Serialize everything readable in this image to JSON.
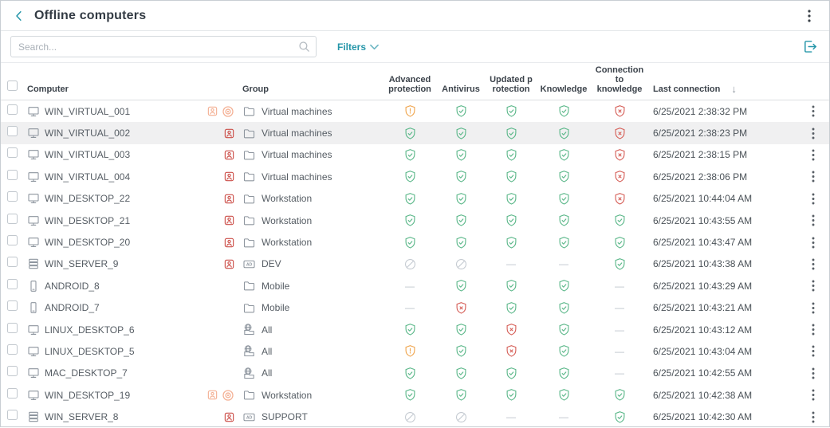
{
  "header": {
    "title": "Offline computers"
  },
  "toolbar": {
    "search_placeholder": "Search...",
    "filters_label": "Filters"
  },
  "table": {
    "columns": {
      "computer": "Computer",
      "group": "Group",
      "advanced": "Advanced protection",
      "antivirus": "Antivirus",
      "updated": "Updated protection",
      "knowledge": "Knowledge",
      "connection": "Connection to knowledge",
      "last": "Last connection"
    },
    "sort_indicator": "↓",
    "rows": [
      {
        "name": "WIN_VIRTUAL_001",
        "device": "desktop",
        "badges": [
          "user-light",
          "isolation"
        ],
        "group": "Virtual machines",
        "group_icon": "folder",
        "statuses": {
          "advanced": "warn",
          "antivirus": "ok",
          "updated": "ok",
          "knowledge": "ok",
          "connection": "err"
        },
        "last": "6/25/2021 2:38:32 PM",
        "selected": false
      },
      {
        "name": "WIN_VIRTUAL_002",
        "device": "desktop",
        "badges": [
          "user-red"
        ],
        "group": "Virtual machines",
        "group_icon": "folder",
        "statuses": {
          "advanced": "ok",
          "antivirus": "ok",
          "updated": "ok",
          "knowledge": "ok",
          "connection": "err"
        },
        "last": "6/25/2021 2:38:23 PM",
        "selected": true
      },
      {
        "name": "WIN_VIRTUAL_003",
        "device": "desktop",
        "badges": [
          "user-red"
        ],
        "group": "Virtual machines",
        "group_icon": "folder",
        "statuses": {
          "advanced": "ok",
          "antivirus": "ok",
          "updated": "ok",
          "knowledge": "ok",
          "connection": "err"
        },
        "last": "6/25/2021 2:38:15 PM",
        "selected": false
      },
      {
        "name": "WIN_VIRTUAL_004",
        "device": "desktop",
        "badges": [
          "user-red"
        ],
        "group": "Virtual machines",
        "group_icon": "folder",
        "statuses": {
          "advanced": "ok",
          "antivirus": "ok",
          "updated": "ok",
          "knowledge": "ok",
          "connection": "err"
        },
        "last": "6/25/2021 2:38:06 PM",
        "selected": false
      },
      {
        "name": "WIN_DESKTOP_22",
        "device": "desktop",
        "badges": [
          "user-red"
        ],
        "group": "Workstation",
        "group_icon": "folder",
        "statuses": {
          "advanced": "ok",
          "antivirus": "ok",
          "updated": "ok",
          "knowledge": "ok",
          "connection": "err"
        },
        "last": "6/25/2021 10:44:04 AM",
        "selected": false
      },
      {
        "name": "WIN_DESKTOP_21",
        "device": "desktop",
        "badges": [
          "user-red"
        ],
        "group": "Workstation",
        "group_icon": "folder",
        "statuses": {
          "advanced": "ok",
          "antivirus": "ok",
          "updated": "ok",
          "knowledge": "ok",
          "connection": "ok"
        },
        "last": "6/25/2021 10:43:55 AM",
        "selected": false
      },
      {
        "name": "WIN_DESKTOP_20",
        "device": "desktop",
        "badges": [
          "user-red"
        ],
        "group": "Workstation",
        "group_icon": "folder",
        "statuses": {
          "advanced": "ok",
          "antivirus": "ok",
          "updated": "ok",
          "knowledge": "ok",
          "connection": "ok"
        },
        "last": "6/25/2021 10:43:47 AM",
        "selected": false
      },
      {
        "name": "WIN_SERVER_9",
        "device": "server",
        "badges": [
          "user-red"
        ],
        "group": "DEV",
        "group_icon": "ad",
        "statuses": {
          "advanced": "off",
          "antivirus": "off",
          "updated": "none",
          "knowledge": "none",
          "connection": "ok"
        },
        "last": "6/25/2021 10:43:38 AM",
        "selected": false
      },
      {
        "name": "ANDROID_8",
        "device": "mobile",
        "badges": [],
        "group": "Mobile",
        "group_icon": "folder",
        "statuses": {
          "advanced": "none",
          "antivirus": "ok",
          "updated": "ok",
          "knowledge": "ok",
          "connection": "none"
        },
        "last": "6/25/2021 10:43:29 AM",
        "selected": false
      },
      {
        "name": "ANDROID_7",
        "device": "mobile",
        "badges": [],
        "group": "Mobile",
        "group_icon": "folder",
        "statuses": {
          "advanced": "none",
          "antivirus": "err",
          "updated": "ok",
          "knowledge": "ok",
          "connection": "none"
        },
        "last": "6/25/2021 10:43:21 AM",
        "selected": false
      },
      {
        "name": "LINUX_DESKTOP_6",
        "device": "desktop",
        "badges": [],
        "group": "All",
        "group_icon": "all",
        "statuses": {
          "advanced": "ok",
          "antivirus": "ok",
          "updated": "err",
          "knowledge": "ok",
          "connection": "none"
        },
        "last": "6/25/2021 10:43:12 AM",
        "selected": false
      },
      {
        "name": "LINUX_DESKTOP_5",
        "device": "desktop",
        "badges": [],
        "group": "All",
        "group_icon": "all",
        "statuses": {
          "advanced": "warn",
          "antivirus": "ok",
          "updated": "err",
          "knowledge": "ok",
          "connection": "none"
        },
        "last": "6/25/2021 10:43:04 AM",
        "selected": false
      },
      {
        "name": "MAC_DESKTOP_7",
        "device": "desktop",
        "badges": [],
        "group": "All",
        "group_icon": "all",
        "statuses": {
          "advanced": "ok",
          "antivirus": "ok",
          "updated": "ok",
          "knowledge": "ok",
          "connection": "none"
        },
        "last": "6/25/2021 10:42:55 AM",
        "selected": false
      },
      {
        "name": "WIN_DESKTOP_19",
        "device": "desktop",
        "badges": [
          "user-light",
          "isolation"
        ],
        "group": "Workstation",
        "group_icon": "folder",
        "statuses": {
          "advanced": "ok",
          "antivirus": "ok",
          "updated": "ok",
          "knowledge": "ok",
          "connection": "ok"
        },
        "last": "6/25/2021 10:42:38 AM",
        "selected": false
      },
      {
        "name": "WIN_SERVER_8",
        "device": "server",
        "badges": [
          "user-red"
        ],
        "group": "SUPPORT",
        "group_icon": "ad",
        "statuses": {
          "advanced": "off",
          "antivirus": "off",
          "updated": "none",
          "knowledge": "none",
          "connection": "ok"
        },
        "last": "6/25/2021 10:42:30 AM",
        "selected": false
      }
    ]
  },
  "colors": {
    "accent": "#2596a9",
    "ok": "#5cb88a",
    "warn": "#f0a64f",
    "err": "#d66059",
    "muted": "#c3c9d0",
    "icon_gray": "#8d959e",
    "badge_red": "#cc4f49",
    "badge_light": "#f4b094"
  }
}
